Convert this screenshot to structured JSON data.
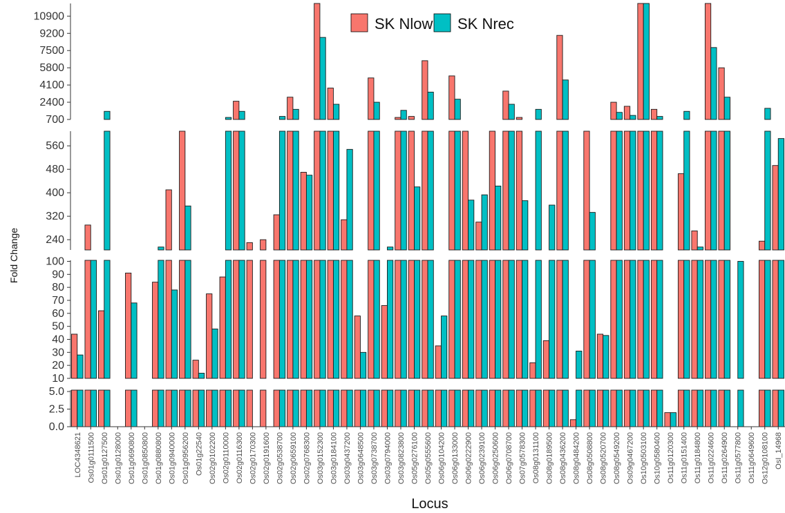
{
  "chart_data": {
    "type": "bar",
    "xlabel": "Locus",
    "ylabel": "Fold Change",
    "legend_position": "top-center",
    "series_colors": [
      "#F8766D",
      "#00BFC4"
    ],
    "categories": [
      "LOC4348621",
      "Os01g0111500",
      "Os01g0127500",
      "Os01g0128000",
      "Os01g0690800",
      "Os01g0850800",
      "Os01g0880800",
      "Os01g0940000",
      "Os01g0956200",
      "Os01g22540",
      "Os02g0102200",
      "Os02g0110000",
      "Os02g0116300",
      "Os02g0170300",
      "Os02g0191600",
      "Os02g0538700",
      "Os02g0659100",
      "Os02g0768300",
      "Os03g0152300",
      "Os03g0184100",
      "Os03g0437200",
      "Os03g0648500",
      "Os03g0738700",
      "Os03g0794000",
      "Os03g0823800",
      "Os05g0276100",
      "Os05g0555600",
      "Os06g0104200",
      "Os06g0133000",
      "Os06g0222900",
      "Os06g0239100",
      "Os06g0250600",
      "Os06g0708700",
      "Os07g0578300",
      "Os08g0131100",
      "Os08g0189500",
      "Os08g0436200",
      "Os08g0484200",
      "Os08g0508800",
      "Os08g0520700",
      "Os08g0549200",
      "Os09g0467200",
      "Os10g0503100",
      "Os10g0580400",
      "Os11g0120300",
      "Os11g0151400",
      "Os11g0184800",
      "Os11g0224600",
      "Os11g0264900",
      "Os11g0577800",
      "Os11g0649600",
      "Os12g0108100",
      "OsI_14968"
    ],
    "series": [
      {
        "name": "SK Nlow",
        "values": [
          44,
          290,
          62,
          0,
          91,
          0,
          84,
          410,
          630,
          24,
          75,
          88,
          2500,
          230,
          240,
          325,
          2900,
          470,
          13000,
          3800,
          308,
          58,
          4800,
          66,
          900,
          1000,
          6500,
          35,
          5000,
          700,
          300,
          690,
          3500,
          900,
          22,
          39,
          9000,
          1,
          620,
          44,
          2400,
          2000,
          13000,
          1700,
          2,
          465,
          270,
          13000,
          5800,
          0,
          0,
          235,
          493
        ]
      },
      {
        "name": "SK Nrec",
        "values": [
          28,
          200,
          1500,
          0,
          68,
          0,
          215,
          78,
          355,
          14,
          48,
          900,
          1500,
          0,
          0,
          1000,
          1700,
          460,
          8800,
          2200,
          548,
          30,
          2400,
          215,
          1600,
          420,
          3400,
          58,
          2700,
          375,
          393,
          423,
          2200,
          373,
          1700,
          358,
          4600,
          31,
          333,
          43,
          1400,
          1100,
          13000,
          1000,
          2,
          1500,
          215,
          7800,
          2900,
          100,
          0,
          1800,
          585
        ]
      }
    ],
    "y_panels": [
      {
        "ticks": [
          "0.0",
          "2.5",
          "5.0"
        ],
        "tick_values": [
          0,
          2.5,
          5
        ]
      },
      {
        "ticks": [
          "10",
          "20",
          "30",
          "40",
          "50",
          "60",
          "70",
          "80",
          "90",
          "100"
        ],
        "tick_values": [
          10,
          20,
          30,
          40,
          50,
          60,
          70,
          80,
          90,
          100
        ]
      },
      {
        "ticks": [
          "240",
          "320",
          "400",
          "480",
          "560"
        ],
        "tick_values": [
          240,
          320,
          400,
          480,
          560
        ]
      },
      {
        "ticks": [
          "700",
          "2400",
          "4100",
          "5800",
          "7500",
          "9200",
          "10900"
        ],
        "tick_values": [
          700,
          2400,
          4100,
          5800,
          7500,
          9200,
          10900
        ]
      }
    ]
  }
}
